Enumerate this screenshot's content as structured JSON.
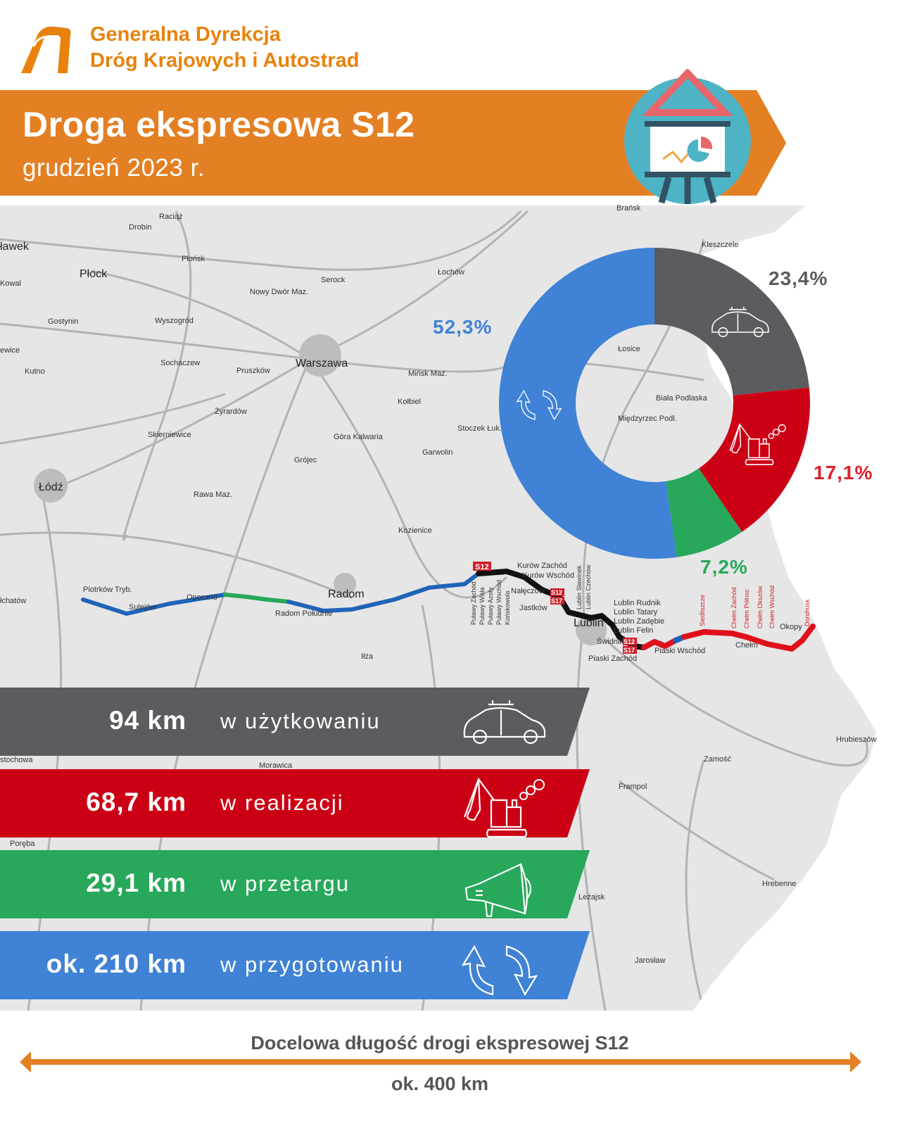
{
  "header": {
    "org_line1": "Generalna Dyrekcja",
    "org_line2": "Dróg Krajowych i Autostrad",
    "title": "Droga ekspresowa S12",
    "subtitle": "grudzień 2023 r."
  },
  "colors": {
    "brand_orange": "#e38024",
    "in_use": "#5b5c5f",
    "in_progress": "#cc0015",
    "tender": "#27a85a",
    "preparation": "#3f82d6"
  },
  "map": {
    "labels": [
      "Brańsk",
      "Kleszczele",
      "Raciąż",
      "Drobin",
      "ławek",
      "Płońsk",
      "Płock",
      "Serock",
      "Łochów",
      "Kowal",
      "Nowy Dwór Maz.",
      "Gostynin",
      "Wyszogród",
      "Warszawa",
      "ewice",
      "Kutno",
      "Sochaczew",
      "Pruszków",
      "Mińsk Maz.",
      "Kołbiel",
      "Żyrardów",
      "Stoczek Łuk.",
      "Skierniewice",
      "Góra Kalwaria",
      "Garwolin",
      "Grójec",
      "Łódź",
      "Rawa Maz.",
      "Kozienice",
      "Piotrków Tryb.",
      "łchatów",
      "Sulejów",
      "Opoczno",
      "Radom Południe",
      "Radom",
      "Iłża",
      "Łosice",
      "Biała Podlaska",
      "Międzyrzec Podl.",
      "Lublin",
      "Chełm",
      "Okopy",
      "Piaski Wschód",
      "Piaski Zachód",
      "Świdnik",
      "Hrubieszów",
      "Zamość",
      "Frampol",
      "Hrebenne",
      "Leżajsk",
      "Jarosław",
      "stochowa",
      "Poręba",
      "Morawica",
      "Kurów Zachód",
      "Kurów Wschód",
      "Nałęczów",
      "Jastków",
      "Lublin Rudnik",
      "Lublin Tatary",
      "Lublin Zadębie",
      "Lublin Felin",
      "Siedliszcze",
      "Chełm Zachód",
      "Chełm Północ",
      "Chełm Okszów",
      "Chełm Wschód",
      "Dorohusk",
      "Puławy Zachód",
      "Puławy Wisła",
      "Puławy Azoty",
      "Puławy Wschód",
      "Końskowola",
      "Lublin Sławinek",
      "Lublin Czechów"
    ],
    "road_badges": [
      "S12",
      "S17"
    ]
  },
  "chart_data": {
    "type": "pie",
    "donut": true,
    "categories": [
      "w użytkowaniu",
      "w realizacji",
      "w przetargu",
      "w przygotowaniu"
    ],
    "values": [
      23.4,
      17.1,
      7.2,
      52.3
    ],
    "value_labels": [
      "23,4%",
      "17,1%",
      "7,2%",
      "52,3%"
    ],
    "colors": [
      "#5b5c5f",
      "#cc0015",
      "#27a85a",
      "#3f82d6"
    ],
    "icons": [
      "car-icon",
      "excavator-icon",
      "megaphone-icon",
      "refresh-icon"
    ]
  },
  "status_bands": [
    {
      "km": "94 km",
      "label": "w użytkowaniu",
      "icon": "car-icon"
    },
    {
      "km": "68,7 km",
      "label": "w realizacji",
      "icon": "excavator-icon"
    },
    {
      "km": "29,1 km",
      "label": "w przetargu",
      "icon": "megaphone-icon"
    },
    {
      "km": "ok. 210 km",
      "label": "w przygotowaniu",
      "icon": "refresh-icon"
    }
  ],
  "footer": {
    "caption": "Docelowa długość drogi ekspresowej S12",
    "total": "ok. 400 km"
  }
}
